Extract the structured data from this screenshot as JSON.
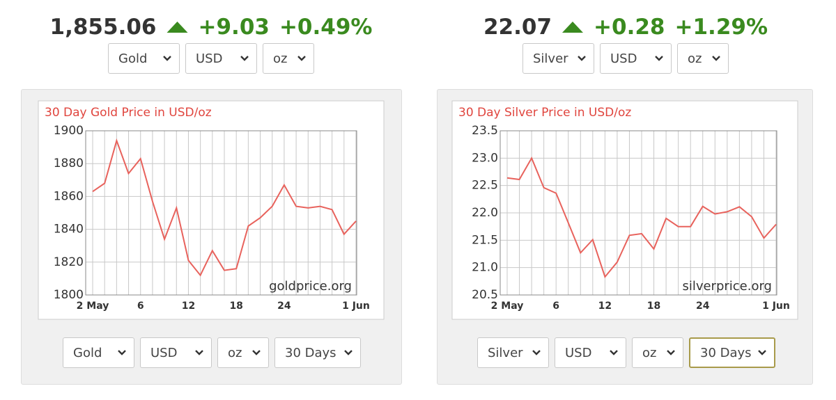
{
  "tickers": [
    {
      "price": "1,855.06",
      "change": "+9.03",
      "change_pct": "+0.49%",
      "selects": [
        "Gold",
        "USD",
        "oz"
      ],
      "bottom_selects": [
        "Gold",
        "USD",
        "oz",
        "30 Days"
      ]
    },
    {
      "price": "22.07",
      "change": "+0.28",
      "change_pct": "+1.29%",
      "selects": [
        "Silver",
        "USD",
        "oz"
      ],
      "bottom_selects": [
        "Silver",
        "USD",
        "oz",
        "30 Days"
      ]
    }
  ],
  "chart_data": [
    {
      "type": "line",
      "title": "30 Day Gold Price in USD/oz",
      "annotation": "goldprice.org",
      "categories": [
        "2 May",
        null,
        null,
        null,
        "6",
        null,
        null,
        null,
        "12",
        null,
        null,
        null,
        "18",
        null,
        null,
        null,
        "24",
        null,
        null,
        null,
        null,
        null,
        "1 Jun"
      ],
      "values": [
        1863,
        1868,
        1894,
        1874,
        1883,
        1857,
        1834,
        1853,
        1821,
        1812,
        1827,
        1815,
        1816,
        1842,
        1847,
        1854,
        1867,
        1854,
        1853,
        1854,
        1852,
        1837,
        1845
      ],
      "color": "#e8625c",
      "ylim": [
        1800,
        1900
      ],
      "yticks": [
        1800,
        1820,
        1840,
        1860,
        1880,
        1900
      ],
      "grid": true
    },
    {
      "type": "line",
      "title": "30 Day Silver Price in USD/oz",
      "annotation": "silverprice.org",
      "categories": [
        "2 May",
        null,
        null,
        null,
        "6",
        null,
        null,
        null,
        "12",
        null,
        null,
        null,
        "18",
        null,
        null,
        null,
        "24",
        null,
        null,
        null,
        null,
        null,
        "1 Jun"
      ],
      "values": [
        22.64,
        22.61,
        23.0,
        22.46,
        22.36,
        21.82,
        21.27,
        21.51,
        20.83,
        21.1,
        21.59,
        21.62,
        21.34,
        21.9,
        21.75,
        21.75,
        22.12,
        21.98,
        22.02,
        22.11,
        21.93,
        21.54,
        21.79
      ],
      "color": "#e8625c",
      "ylim": [
        20.5,
        23.5
      ],
      "yticks": [
        20.5,
        {
          "value": 21,
          "label": "21.0"
        },
        21.5,
        {
          "value": 22,
          "label": "22.0"
        },
        22.5,
        {
          "value": 23,
          "label": "23.0"
        },
        23.5
      ],
      "grid": true
    }
  ]
}
